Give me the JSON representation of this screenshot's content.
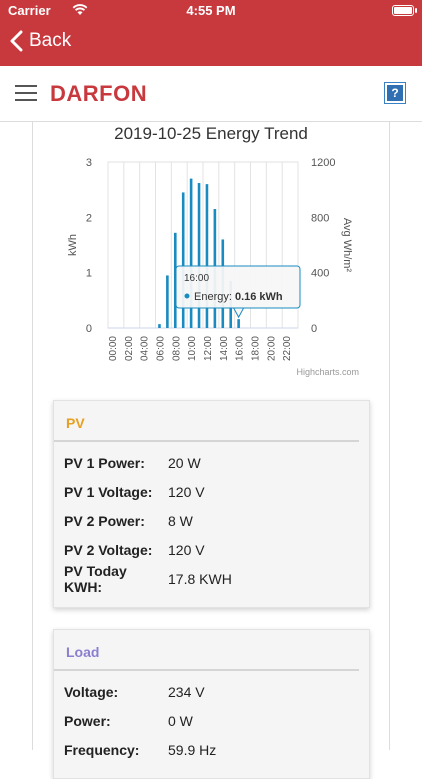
{
  "status_bar": {
    "carrier": "Carrier",
    "time": "4:55 PM"
  },
  "nav": {
    "back_label": "Back"
  },
  "header": {
    "logo_text": "DARFON",
    "help_label": "?"
  },
  "chart_data": {
    "type": "bar",
    "title": "2019-10-25 Energy Trend",
    "categories": [
      "00:00",
      "01:00",
      "02:00",
      "03:00",
      "04:00",
      "05:00",
      "06:00",
      "07:00",
      "08:00",
      "09:00",
      "10:00",
      "11:00",
      "12:00",
      "13:00",
      "14:00",
      "15:00",
      "16:00",
      "17:00",
      "18:00",
      "19:00",
      "20:00",
      "21:00",
      "22:00",
      "23:00"
    ],
    "x_tick_labels": [
      "00:00",
      "02:00",
      "04:00",
      "06:00",
      "08:00",
      "10:00",
      "12:00",
      "14:00",
      "16:00",
      "18:00",
      "20:00",
      "22:00"
    ],
    "series": [
      {
        "name": "Energy",
        "values": [
          0,
          0,
          0,
          0,
          0,
          0,
          0.07,
          0.95,
          1.72,
          2.45,
          2.7,
          2.62,
          2.6,
          2.15,
          1.6,
          0.85,
          0.16,
          0,
          0,
          0,
          0,
          0,
          0,
          0
        ]
      }
    ],
    "ylabel": "kWh",
    "ylim": [
      0,
      3
    ],
    "yticks": [
      "0",
      "1",
      "2",
      "3"
    ],
    "y2label": "Avg Wh/m²",
    "y2lim": [
      0,
      1200
    ],
    "y2ticks": [
      "0",
      "400",
      "800",
      "1200"
    ],
    "grid": true,
    "bar_color": "#1a8bc0",
    "tooltip": {
      "header": "16:00",
      "label": "Energy: ",
      "value": "0.16 kWh"
    },
    "credits": "Highcharts.com"
  },
  "pv": {
    "title": "PV",
    "rows": [
      {
        "label": "PV 1 Power:",
        "value": "20 W"
      },
      {
        "label": "PV 1 Voltage:",
        "value": "120 V"
      },
      {
        "label": "PV 2 Power:",
        "value": "8 W"
      },
      {
        "label": "PV 2 Voltage:",
        "value": "120 V"
      },
      {
        "label": "PV Today KWH:",
        "value": "17.8 KWH"
      }
    ]
  },
  "load": {
    "title": "Load",
    "rows": [
      {
        "label": "Voltage:",
        "value": "234 V"
      },
      {
        "label": "Power:",
        "value": "0 W"
      },
      {
        "label": "Frequency:",
        "value": "59.9 Hz"
      }
    ]
  }
}
